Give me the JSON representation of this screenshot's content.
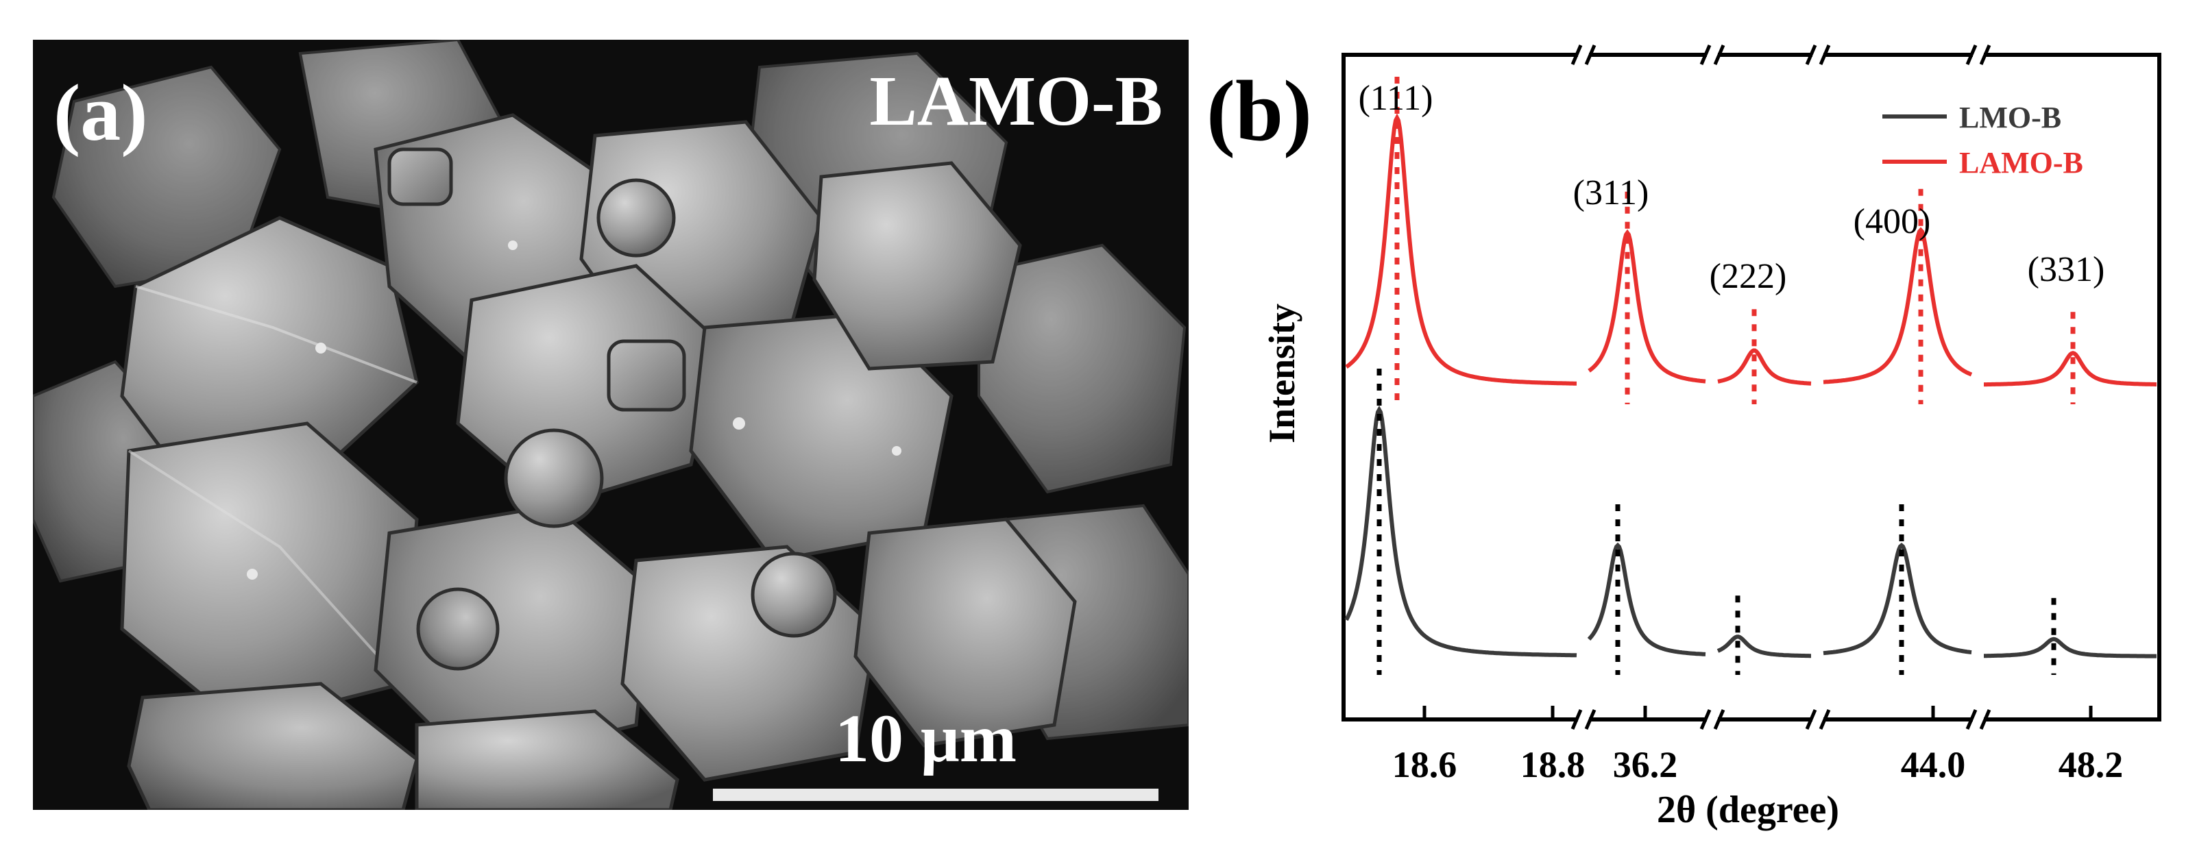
{
  "panel_a": {
    "label": "(a)",
    "sample_name": "LAMO-B",
    "scale_bar": "10 μm"
  },
  "panel_b": {
    "label": "(b)"
  },
  "colors": {
    "lmo": "#3a3a3a",
    "lamo": "#e8302e",
    "frame": "#000000",
    "sem_background": "#0d0d0d"
  },
  "chart_data": {
    "type": "line",
    "xlabel": "2θ (degree)",
    "ylabel": "Intensity",
    "x_axis": "broken",
    "tick_labels": [
      "18.6",
      "18.8",
      "36.2",
      "44.0",
      "48.2"
    ],
    "legend": {
      "placement": "top-right",
      "entries": [
        "LMO-B",
        "LAMO-B"
      ]
    },
    "grid": false,
    "peak_labels": [
      "(111)",
      "(311)",
      "(222)",
      "(400)",
      "(331)"
    ],
    "series": [
      {
        "name": "LMO-B",
        "peak_heights": [
          1.0,
          0.45,
          0.08,
          0.45,
          0.07
        ]
      },
      {
        "name": "LAMO-B",
        "peak_heights": [
          1.0,
          0.57,
          0.13,
          0.58,
          0.12
        ]
      }
    ]
  }
}
